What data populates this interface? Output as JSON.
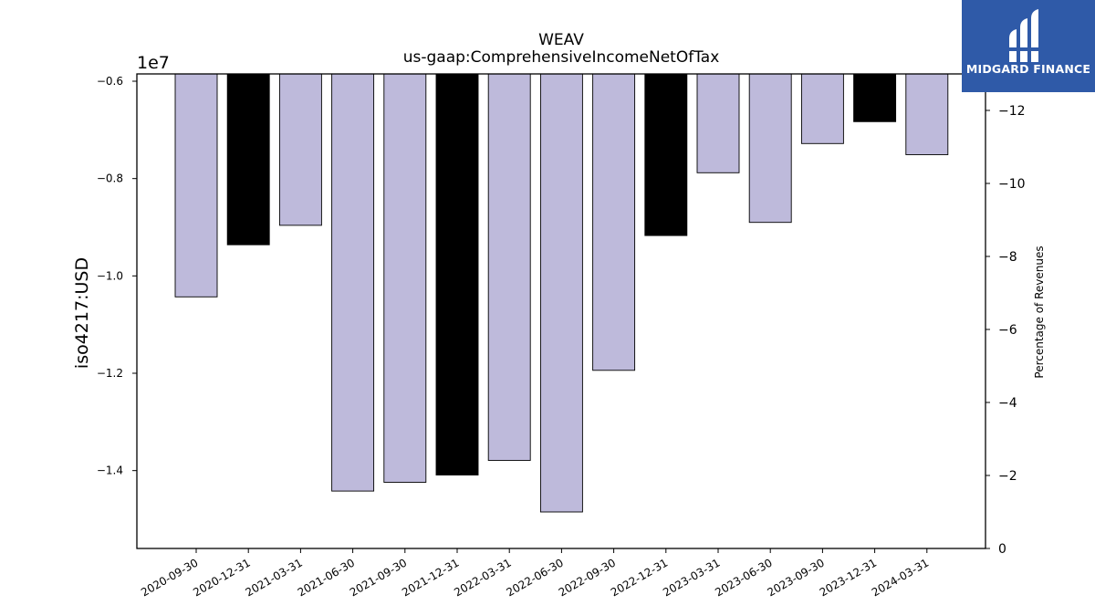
{
  "chart_data": {
    "type": "bar",
    "title": "WEAV",
    "subtitle": "us-gaap:ComprehensiveIncomeNetOfTax",
    "ylabel": "iso4217:USD",
    "y_offset_label": "1e7",
    "y2label": "Percentage of Revenues",
    "categories": [
      "2020-09-30",
      "2020-12-31",
      "2021-03-31",
      "2021-06-30",
      "2021-09-30",
      "2021-12-31",
      "2022-03-31",
      "2022-06-30",
      "2022-09-30",
      "2022-12-31",
      "2023-03-31",
      "2023-06-30",
      "2023-09-30",
      "2023-12-31",
      "2024-03-31"
    ],
    "values": [
      -10430000,
      -9360000,
      -8960000,
      -14420000,
      -14240000,
      -14090000,
      -13790000,
      -14850000,
      -11940000,
      -9170000,
      -7880000,
      -8900000,
      -7280000,
      -6830000,
      -7510000
    ],
    "highlight": [
      false,
      true,
      false,
      false,
      false,
      true,
      false,
      false,
      false,
      true,
      false,
      false,
      false,
      true,
      false
    ],
    "ylim": [
      -15600000,
      -5850000
    ],
    "yticks": [
      -6000000,
      -8000000,
      -10000000,
      -12000000,
      -14000000
    ],
    "ytick_labels": [
      "−0.6",
      "−0.8",
      "−1.0",
      "−1.2",
      "−1.4"
    ],
    "y2lim": [
      0,
      -13
    ],
    "y2ticks": [
      0,
      -2,
      -4,
      -6,
      -8,
      -10,
      -12
    ],
    "y2tick_labels": [
      "0",
      "−2",
      "−4",
      "−6",
      "−8",
      "−10",
      "−12"
    ],
    "colors": {
      "bar": "#bebadb",
      "highlight": "#000000",
      "edge": "#000000"
    },
    "grid": false,
    "legend": "none"
  },
  "logo": {
    "text": "MIDGARD FINANCE",
    "color": "#2f5aa8"
  }
}
